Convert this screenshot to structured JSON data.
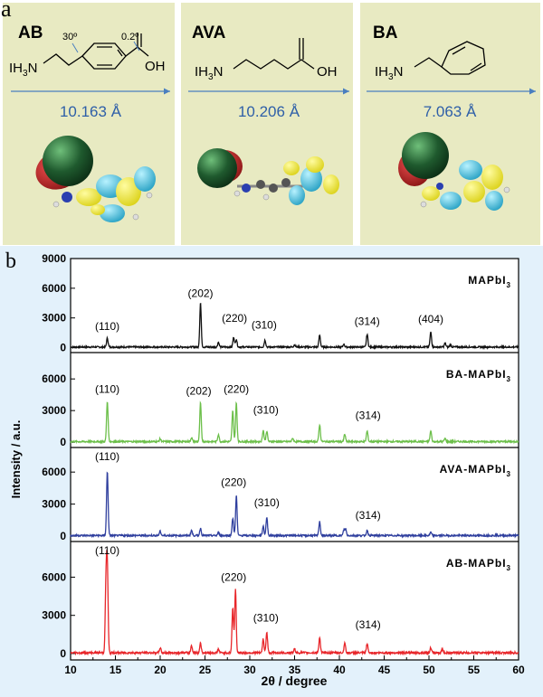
{
  "panel_a": {
    "letter": "a",
    "molecules": [
      {
        "name": "AB",
        "formula_prefix": "IH",
        "formula_sub": "3",
        "formula_suffix": "N",
        "oh": "OH",
        "length": "10.163 Å",
        "angle1": "30º",
        "angle2": "0.2º"
      },
      {
        "name": "AVA",
        "formula_prefix": "IH",
        "formula_sub": "3",
        "formula_suffix": "N",
        "oh": "OH",
        "length": "10.206 Å"
      },
      {
        "name": "BA",
        "formula_prefix": "IH",
        "formula_sub": "3",
        "formula_suffix": "N",
        "length": "7.063 Å"
      }
    ],
    "colors": {
      "background": "#e8eac2",
      "arrow": "#4a7fc0",
      "length_text": "#2e5fa8",
      "iodine": "#1f5a2e",
      "orbital_yellow": "#f2ea3a",
      "orbital_cyan": "#38b8d6",
      "orbital_red": "#b01818"
    }
  },
  "panel_b": {
    "letter": "b",
    "ylabel": "Intensity / a.u.",
    "xlabel": "2θ / degree",
    "colors": {
      "background": "#e3f1fb"
    }
  },
  "chart_data": {
    "type": "line",
    "xlabel": "2θ / degree",
    "ylabel": "Intensity / a.u.",
    "xlim": [
      10,
      60
    ],
    "xticks": [
      10,
      15,
      20,
      25,
      30,
      35,
      40,
      45,
      50,
      55,
      60
    ],
    "grid": false,
    "series": [
      {
        "name": "MAPbI3",
        "label_main": "MAPbI",
        "label_sub": "3",
        "color": "#111111",
        "ylim": [
          -500,
          9000
        ],
        "yticks": [
          0,
          3000,
          6000,
          9000
        ],
        "peaks": [
          [
            14.1,
            900
          ],
          [
            24.5,
            4500
          ],
          [
            26.5,
            500
          ],
          [
            28.2,
            1000
          ],
          [
            28.5,
            800
          ],
          [
            31.7,
            700
          ],
          [
            35.0,
            250
          ],
          [
            37.8,
            1200
          ],
          [
            40.5,
            300
          ],
          [
            43.1,
            1300
          ],
          [
            50.2,
            1500
          ],
          [
            51.8,
            400
          ],
          [
            52.4,
            250
          ]
        ],
        "annotations": [
          {
            "text": "(110)",
            "x": 14.1,
            "y": 1800
          },
          {
            "text": "(202)",
            "x": 24.5,
            "y": 5100
          },
          {
            "text": "(220)",
            "x": 28.3,
            "y": 2600
          },
          {
            "text": "(310)",
            "x": 31.6,
            "y": 1900
          },
          {
            "text": "(314)",
            "x": 43.1,
            "y": 2300
          },
          {
            "text": "(404)",
            "x": 50.2,
            "y": 2500
          }
        ]
      },
      {
        "name": "BA-MAPbI3",
        "label_main": "BA-MAPbI",
        "label_sub": "3",
        "color": "#6cbf4a",
        "ylim": [
          -500,
          8500
        ],
        "yticks": [
          0,
          3000,
          6000
        ],
        "peaks": [
          [
            14.1,
            3800
          ],
          [
            20.0,
            250
          ],
          [
            23.5,
            400
          ],
          [
            24.5,
            3700
          ],
          [
            26.5,
            700
          ],
          [
            28.1,
            2900
          ],
          [
            28.5,
            3700
          ],
          [
            31.5,
            1100
          ],
          [
            31.9,
            1000
          ],
          [
            34.8,
            300
          ],
          [
            37.8,
            1600
          ],
          [
            40.6,
            700
          ],
          [
            43.1,
            1000
          ],
          [
            50.2,
            1000
          ],
          [
            51.8,
            300
          ]
        ],
        "annotations": [
          {
            "text": "(110)",
            "x": 14.1,
            "y": 4700
          },
          {
            "text": "(202)",
            "x": 24.3,
            "y": 4500
          },
          {
            "text": "(220)",
            "x": 28.5,
            "y": 4700
          },
          {
            "text": "(310)",
            "x": 31.8,
            "y": 2700
          },
          {
            "text": "(314)",
            "x": 43.2,
            "y": 2200
          }
        ]
      },
      {
        "name": "AVA-MAPbI3",
        "label_main": "AVA-MAPbI",
        "label_sub": "3",
        "color": "#2f3f9e",
        "ylim": [
          -500,
          8300
        ],
        "yticks": [
          0,
          3000,
          6000
        ],
        "peaks": [
          [
            14.1,
            6000
          ],
          [
            20.0,
            400
          ],
          [
            23.5,
            500
          ],
          [
            24.5,
            700
          ],
          [
            26.5,
            300
          ],
          [
            28.1,
            1600
          ],
          [
            28.5,
            3800
          ],
          [
            31.5,
            900
          ],
          [
            31.9,
            1700
          ],
          [
            37.8,
            1300
          ],
          [
            40.5,
            500
          ],
          [
            40.7,
            600
          ],
          [
            43.1,
            500
          ],
          [
            50.2,
            300
          ]
        ],
        "annotations": [
          {
            "text": "(110)",
            "x": 14.1,
            "y": 7100
          },
          {
            "text": "(220)",
            "x": 28.2,
            "y": 4700
          },
          {
            "text": "(310)",
            "x": 31.9,
            "y": 2800
          },
          {
            "text": "(314)",
            "x": 43.2,
            "y": 1600
          }
        ]
      },
      {
        "name": "AB-MAPbI3",
        "label_main": "AB-MAPbI",
        "label_sub": "3",
        "color": "#e8262a",
        "ylim": [
          -500,
          8800
        ],
        "yticks": [
          0,
          3000,
          6000
        ],
        "peaks": [
          [
            13.95,
            5200
          ],
          [
            14.1,
            6500
          ],
          [
            20.0,
            400
          ],
          [
            23.5,
            600
          ],
          [
            24.5,
            800
          ],
          [
            26.5,
            300
          ],
          [
            28.1,
            3500
          ],
          [
            28.4,
            5000
          ],
          [
            31.5,
            1100
          ],
          [
            31.9,
            1600
          ],
          [
            35.0,
            300
          ],
          [
            37.8,
            1200
          ],
          [
            40.6,
            800
          ],
          [
            43.1,
            700
          ],
          [
            50.2,
            400
          ],
          [
            51.5,
            300
          ]
        ],
        "annotations": [
          {
            "text": "(110)",
            "x": 14.1,
            "y": 7800
          },
          {
            "text": "(220)",
            "x": 28.2,
            "y": 5700
          },
          {
            "text": "(310)",
            "x": 31.8,
            "y": 2500
          },
          {
            "text": "(314)",
            "x": 43.2,
            "y": 2000
          }
        ]
      }
    ]
  }
}
